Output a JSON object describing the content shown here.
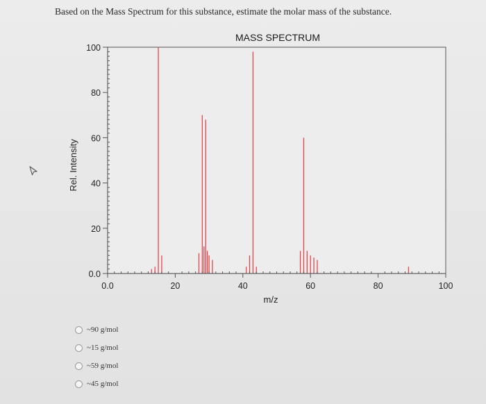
{
  "question": "Based on the Mass Spectrum for this substance, estimate the molar mass of the substance.",
  "cursor_icon": "cursor-arrow-icon",
  "chart_data": {
    "type": "bar",
    "title": "MASS SPECTRUM",
    "xlabel": "m/z",
    "ylabel": "Rel. Intensity",
    "xlim": [
      0,
      100
    ],
    "ylim": [
      0,
      100
    ],
    "x_ticks": [
      "0.0",
      "20",
      "40",
      "60",
      "80",
      "100"
    ],
    "y_ticks": [
      "0.0",
      "20",
      "40",
      "60",
      "80",
      "100"
    ],
    "x_tick_values": [
      0,
      20,
      40,
      60,
      80,
      100
    ],
    "y_tick_values": [
      0,
      20,
      40,
      60,
      80,
      100
    ],
    "bar_color": "#e0474c",
    "series": [
      {
        "x": [
          13,
          14,
          15,
          16,
          27,
          28,
          28.5,
          29,
          29.5,
          30,
          31,
          41,
          42,
          43,
          44,
          57,
          58,
          59,
          60,
          61,
          62,
          89
        ],
        "values": [
          2,
          3,
          100,
          8,
          9,
          70,
          12,
          68,
          10,
          8,
          6,
          3,
          8,
          98,
          3,
          10,
          60,
          10,
          8,
          7,
          6,
          3
        ]
      }
    ],
    "grid": false
  },
  "options": [
    {
      "label": "~90 g/mol"
    },
    {
      "label": "~15 g/mol"
    },
    {
      "label": "~59 g/mol"
    },
    {
      "label": "~45 g/mol"
    }
  ]
}
